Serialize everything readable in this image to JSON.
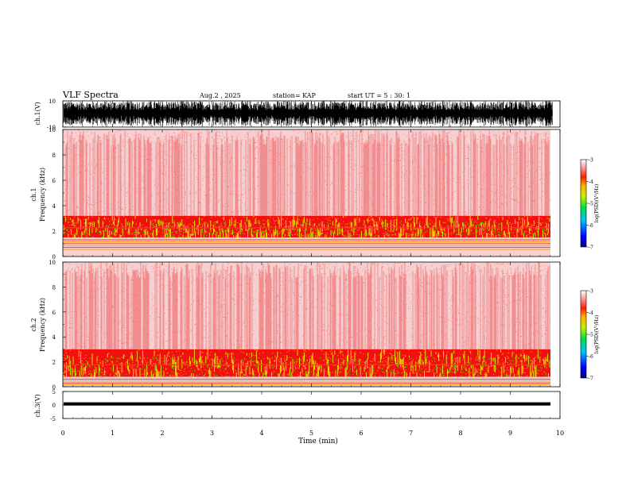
{
  "header": {
    "title": "VLF Spectra",
    "date": "Aug.2 , 2025",
    "station": "station= KAP",
    "start_ut": "start UT = 5 : 30: 1"
  },
  "colors": {
    "spectrogram_background": "#f6d0d0",
    "spectrogram_streak": "#e8262a",
    "waveform": "#000000"
  },
  "chart_data": [
    {
      "id": "ch1_waveform",
      "type": "line",
      "ylabel": "ch.1(V)",
      "ylim": [
        -10,
        10
      ],
      "yticks": [
        10,
        -10
      ],
      "x_range_min": [
        0,
        9.85
      ],
      "description_values": "dense noise waveform oscillating roughly between -10 and 10 V"
    },
    {
      "id": "ch1_spectrogram",
      "type": "heatmap",
      "ylabel": "ch.1\nFrequency (kHz)",
      "ylim_khz": [
        0,
        10
      ],
      "yticks": [
        0,
        2,
        4,
        6,
        8,
        10
      ],
      "intense_band_khz": [
        1.5,
        3.2
      ],
      "colorbar": {
        "label": "log(PSD)(V²/Hz)",
        "range": [
          -7,
          -3
        ],
        "ticks": [
          -3,
          -4,
          -5,
          -6,
          -7
        ]
      }
    },
    {
      "id": "ch2_spectrogram",
      "type": "heatmap",
      "ylabel": "ch.2\nFrequency (kHz)",
      "ylim_khz": [
        0,
        10
      ],
      "yticks": [
        0,
        2,
        4,
        6,
        8,
        10
      ],
      "intense_band_khz": [
        0.8,
        3.0
      ],
      "colorbar": {
        "label": "log(PSD)(V²/Hz)",
        "range": [
          -7,
          -3
        ],
        "ticks": [
          -3,
          -4,
          -5,
          -6,
          -7
        ]
      }
    },
    {
      "id": "ch3_waveform",
      "type": "line",
      "ylabel": "ch.3(V)",
      "ylim": [
        -5,
        5
      ],
      "yticks": [
        5,
        0,
        -5
      ],
      "baseline_v": 0.4,
      "amplitude_v": 0.6
    }
  ],
  "xaxis": {
    "label": "Time (min)",
    "range": [
      0,
      10
    ],
    "ticks": [
      "0",
      "1",
      "2",
      "3",
      "4",
      "5",
      "6",
      "7",
      "8",
      "9",
      "10"
    ]
  },
  "labels": {
    "ch1_wave": "ch.1(V)",
    "ch1_spec_a": "ch.1",
    "ch1_spec_b": "Frequency (kHz)",
    "ch2_spec_a": "ch.2",
    "ch2_spec_b": "Frequency (kHz)",
    "ch3_wave": "ch.3(V)",
    "cbar": "log(PSD)(V²/Hz)"
  }
}
